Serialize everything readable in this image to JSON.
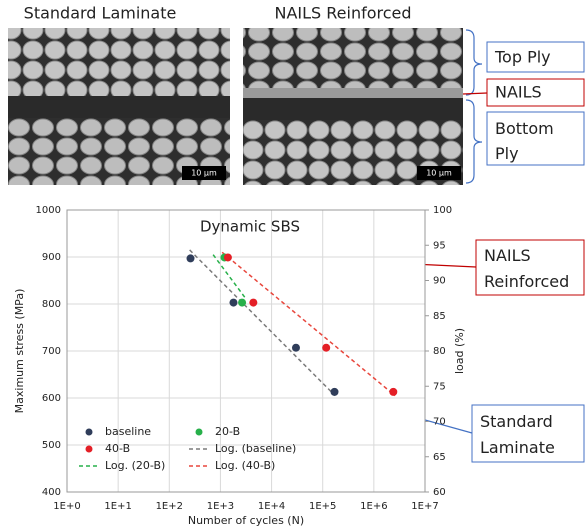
{
  "figure": {
    "images": [
      {
        "title": "Standard Laminate",
        "scale_bar": "10 µm"
      },
      {
        "title": "NAILS Reinforced",
        "scale_bar": "10 µm"
      }
    ],
    "labels": [
      "Top Ply",
      "NAILS",
      "Bottom Ply"
    ]
  },
  "chart_data": {
    "type": "scatter",
    "title": "Dynamic SBS",
    "xlabel": "Number of cycles (N)",
    "ylabel": "Maximum stress (MPa)",
    "y2label": "load (%)",
    "xscale": "log",
    "xlim": [
      1,
      10000000
    ],
    "xticks": [
      {
        "value": 1,
        "label": "1E+0"
      },
      {
        "value": 10,
        "label": "1E+1"
      },
      {
        "value": 100,
        "label": "1E+2"
      },
      {
        "value": 1000,
        "label": "1E+3"
      },
      {
        "value": 10000,
        "label": "1E+4"
      },
      {
        "value": 100000,
        "label": "1E+5"
      },
      {
        "value": 1000000,
        "label": "1E+6"
      },
      {
        "value": 10000000,
        "label": "1E+7"
      }
    ],
    "ylim": [
      400,
      1000
    ],
    "yticks": [
      400,
      500,
      600,
      700,
      800,
      900,
      1000
    ],
    "y2lim": [
      60,
      100
    ],
    "y2ticks": [
      60,
      65,
      70,
      75,
      80,
      85,
      90,
      95,
      100
    ],
    "grid": true,
    "legend": "lower left",
    "series": [
      {
        "name": "baseline",
        "color": "#2f3d5a",
        "style": "marker",
        "x": [
          260,
          1800,
          30000,
          170000
        ],
        "values": [
          897,
          803,
          707,
          613
        ]
      },
      {
        "name": "20-B",
        "color": "#27b04a",
        "style": "marker",
        "x": [
          1200,
          2650
        ],
        "values": [
          899,
          803
        ]
      },
      {
        "name": "40-B",
        "color": "#e41f26",
        "style": "marker",
        "x": [
          1400,
          4400,
          117000,
          2400000
        ],
        "values": [
          899,
          803,
          707,
          613
        ]
      },
      {
        "name": "Log. (baseline)",
        "color": "#7a7a7a",
        "style": "dashed",
        "x": [
          250,
          175000
        ],
        "values": [
          915,
          605
        ]
      },
      {
        "name": "Log. (20-B)",
        "color": "#27b04a",
        "style": "dashed",
        "x": [
          720,
          3200
        ],
        "values": [
          905,
          810
        ]
      },
      {
        "name": "Log. (40-B)",
        "color": "#e8473d",
        "style": "dashed",
        "x": [
          1080,
          2600000
        ],
        "values": [
          910,
          605
        ]
      }
    ],
    "annotations": [
      {
        "text": "NAILS Reinforced",
        "color": "#c00000"
      },
      {
        "text": "Standard Laminate",
        "color": "#4472c4"
      }
    ]
  }
}
